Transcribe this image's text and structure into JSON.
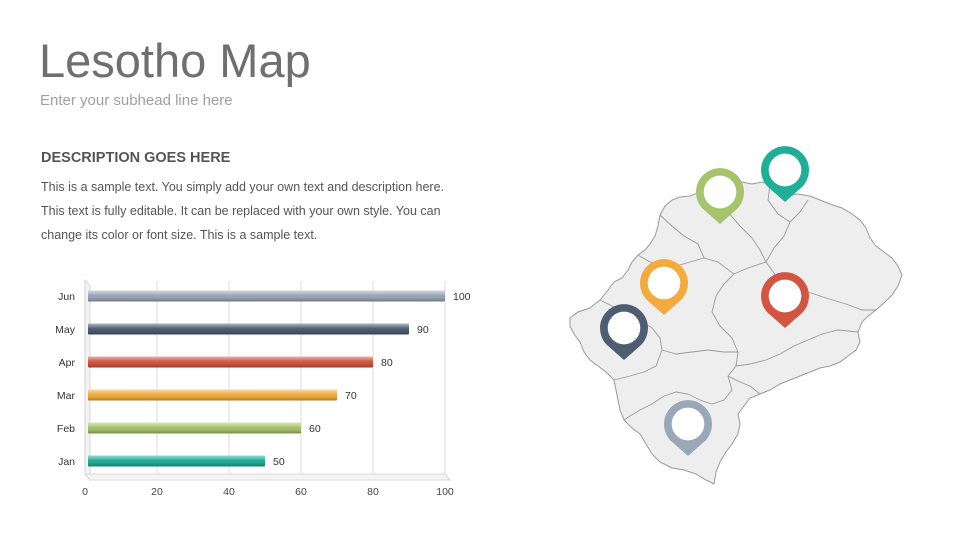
{
  "slide": {
    "title": "Lesotho Map",
    "subtitle": "Enter your subhead line here",
    "description": {
      "heading": "DESCRIPTION GOES HERE",
      "lines": [
        "This is a sample text. You simply add your own text and description here.",
        "This text is fully editable. It can be replaced with your own style. You can",
        "change its color or font size. This is a sample text."
      ]
    }
  },
  "chart_data": {
    "type": "bar",
    "orientation": "horizontal",
    "categories": [
      "Jun",
      "May",
      "Apr",
      "Mar",
      "Feb",
      "Jan"
    ],
    "values": [
      100,
      90,
      80,
      70,
      60,
      50
    ],
    "colors": [
      "#9aa7b8",
      "#4e5d72",
      "#d35440",
      "#f2ab3c",
      "#a6c46b",
      "#1fae98"
    ],
    "data_labels": [
      "100",
      "90",
      "80",
      "70",
      "60",
      "50"
    ],
    "xlim": [
      0,
      100
    ],
    "xticks": [
      "0",
      "20",
      "40",
      "60",
      "80",
      "100"
    ],
    "title": "",
    "xlabel": "",
    "ylabel": "",
    "grid": true,
    "legend": "none"
  },
  "map": {
    "fill_color": "#eeeeee",
    "border_color": "#999999",
    "pins": [
      {
        "color": "#1fae98",
        "icon": "map-pin-icon"
      },
      {
        "color": "#a6c46b",
        "icon": "map-pin-icon"
      },
      {
        "color": "#f2ab3c",
        "icon": "map-pin-icon"
      },
      {
        "color": "#d35440",
        "icon": "map-pin-icon"
      },
      {
        "color": "#4e5d72",
        "icon": "map-pin-icon"
      },
      {
        "color": "#9aa7b8",
        "icon": "map-pin-icon"
      }
    ]
  }
}
